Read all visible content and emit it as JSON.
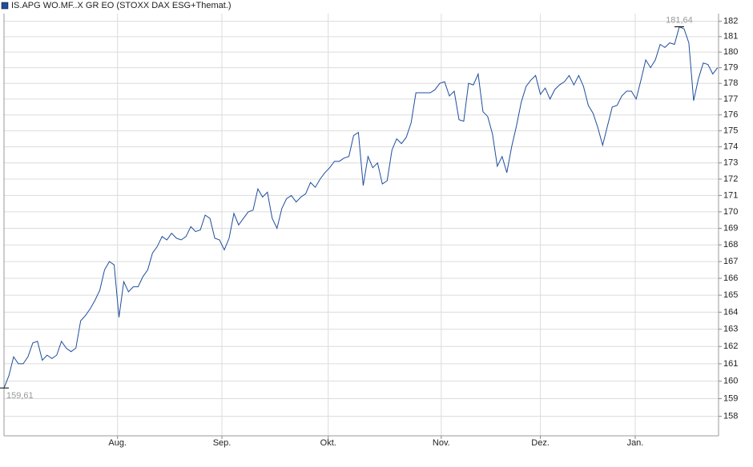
{
  "chart_data": {
    "type": "line",
    "legend": "IS.APG WO.MF..X GR EO (STOXX DAX ESG+Themat.)",
    "series": [
      {
        "name": "IS.APG WO.MF..X GR EO (STOXX DAX ESG+Themat.)",
        "color": "#1f4e9c",
        "values": [
          159.61,
          160.3,
          161.4,
          161.0,
          161.0,
          161.4,
          162.2,
          162.3,
          161.2,
          161.5,
          161.3,
          161.5,
          162.3,
          161.9,
          161.7,
          161.9,
          163.5,
          163.8,
          164.2,
          164.7,
          165.3,
          166.5,
          167.0,
          166.8,
          163.7,
          165.8,
          165.2,
          165.5,
          165.5,
          166.1,
          166.5,
          167.5,
          167.9,
          168.5,
          168.3,
          168.7,
          168.4,
          168.3,
          168.5,
          169.1,
          168.8,
          168.9,
          169.8,
          169.6,
          168.4,
          168.3,
          167.7,
          168.4,
          169.9,
          169.2,
          169.6,
          170.0,
          170.1,
          171.4,
          170.9,
          171.2,
          169.6,
          169.0,
          170.2,
          170.8,
          171.0,
          170.6,
          170.9,
          171.1,
          171.8,
          171.5,
          172.0,
          172.4,
          172.7,
          173.1,
          173.1,
          173.3,
          173.4,
          174.7,
          174.9,
          171.6,
          173.4,
          172.7,
          173.0,
          171.7,
          171.9,
          173.8,
          174.5,
          174.2,
          174.6,
          175.5,
          177.4,
          177.4,
          177.4,
          177.4,
          177.6,
          178.0,
          178.1,
          177.2,
          177.5,
          175.7,
          175.6,
          178.0,
          177.9,
          178.6,
          176.2,
          175.9,
          174.8,
          172.8,
          173.4,
          172.4,
          174.0,
          175.3,
          176.8,
          177.8,
          178.2,
          178.5,
          177.3,
          177.7,
          177.0,
          177.6,
          177.9,
          178.1,
          178.5,
          177.9,
          178.5,
          177.8,
          176.6,
          176.1,
          175.2,
          174.1,
          175.3,
          176.5,
          176.6,
          177.2,
          177.5,
          177.5,
          177.0,
          178.2,
          179.5,
          179.0,
          179.5,
          180.5,
          180.3,
          180.6,
          180.5,
          181.64,
          181.5,
          180.6,
          176.9,
          178.3,
          179.3,
          179.2,
          178.6,
          179.0
        ]
      }
    ],
    "annotations": [
      {
        "value": 181.64,
        "label": "181,64"
      },
      {
        "value": 159.61,
        "label": "159,61"
      }
    ],
    "xlim": [
      0,
      149.2
    ],
    "xticks": [
      {
        "value": 23.7,
        "label": "Aug."
      },
      {
        "value": 45.5,
        "label": "Sep."
      },
      {
        "value": 67.7,
        "label": "Okt."
      },
      {
        "value": 91.3,
        "label": "Nov."
      },
      {
        "value": 112.0,
        "label": "Dez."
      },
      {
        "value": 131.8,
        "label": "Jan."
      }
    ],
    "ylim": [
      156.9,
      182.5
    ],
    "log_y": true,
    "yticks": [
      158,
      159,
      160,
      161,
      162,
      163,
      164,
      165,
      166,
      167,
      168,
      169,
      170,
      171,
      172,
      173,
      174,
      175,
      176,
      177,
      178,
      179,
      180,
      181,
      182
    ],
    "grid": true
  }
}
